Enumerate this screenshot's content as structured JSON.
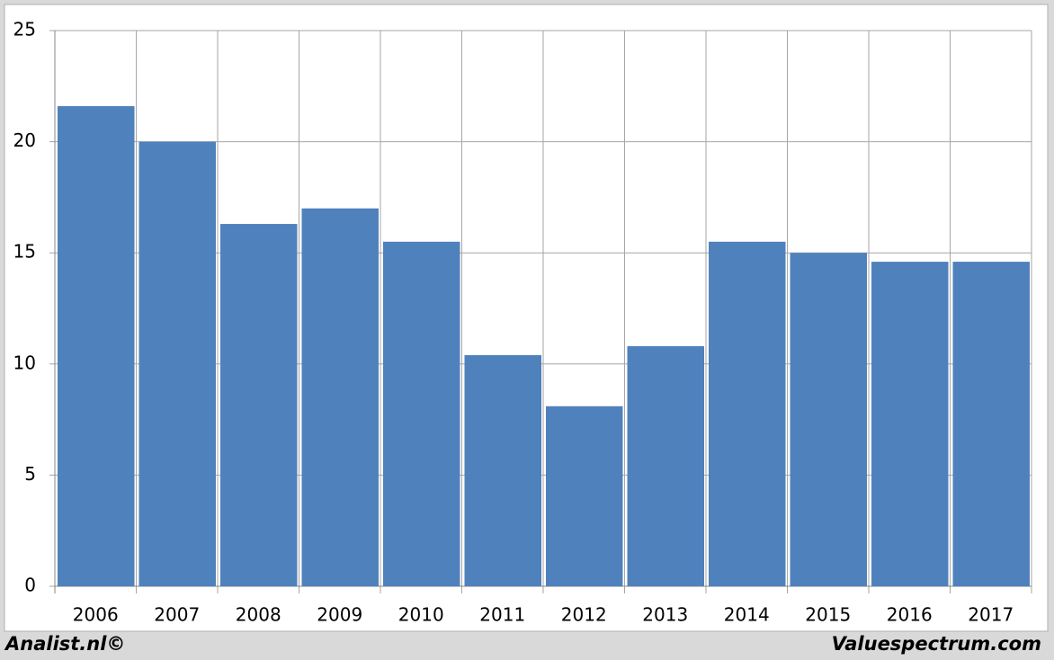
{
  "chart_data": {
    "type": "bar",
    "categories": [
      "2006",
      "2007",
      "2008",
      "2009",
      "2010",
      "2011",
      "2012",
      "2013",
      "2014",
      "2015",
      "2016",
      "2017"
    ],
    "values": [
      21.6,
      20.0,
      16.3,
      17.0,
      15.5,
      10.4,
      8.1,
      10.8,
      15.5,
      15.0,
      14.6,
      14.6
    ],
    "color": "#4f81bd",
    "ylim": [
      0,
      25
    ],
    "yticks": [
      0,
      5,
      10,
      15,
      20,
      25
    ],
    "grid": true
  },
  "footer": {
    "left": "Analist.nl©",
    "right": "Valuespectrum.com"
  }
}
